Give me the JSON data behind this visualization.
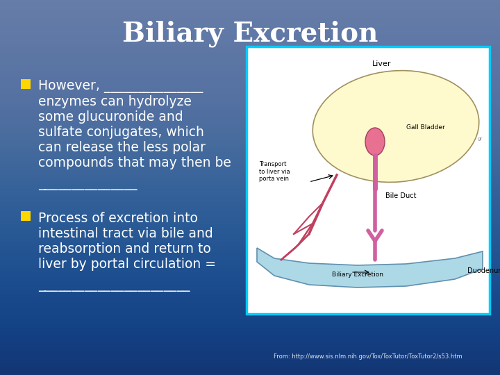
{
  "title": "Biliary Excretion",
  "title_color": "#FFFFFF",
  "title_fontsize": 28,
  "bg_color": "#1a3a7a",
  "bullet_color": "#FFD700",
  "text_color": "#FFFFFF",
  "text_fontsize": 13.5,
  "bullet1_lines": [
    "However, _______________",
    "enzymes can hydrolyze",
    "some glucuronide and",
    "sulfate conjugates, which",
    "can release the less polar",
    "compounds that may then be"
  ],
  "underline1": "_______________",
  "bullet2_lines": [
    "Process of excretion into",
    "intestinal tract via bile and",
    "reabsorption and return to",
    "liver by portal circulation ="
  ],
  "underline2": "_______________________",
  "footnote": "From: http://www.sis.nlm.nih.gov/Tox/ToxTutor/ToxTutor2/s53.htm",
  "footnote_color": "#FFFFFF",
  "footnote_fontsize": 6,
  "image_border_color": "#00CCFF",
  "image_border_lw": 2.5
}
